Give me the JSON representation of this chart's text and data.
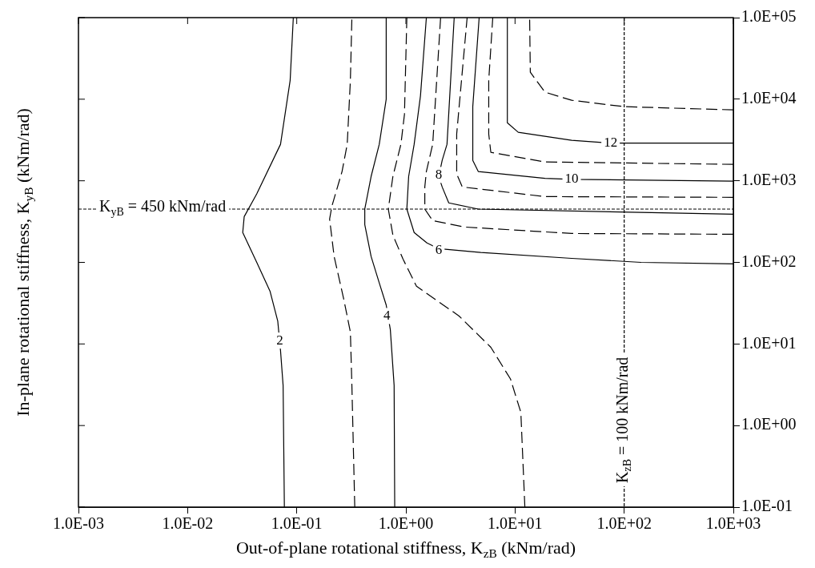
{
  "chart_data": {
    "type": "line",
    "xlabel": "Out-of-plane rotational stiffness, K$_{zB}$ (kNm/rad)",
    "ylabel": "In-plane rotational stiffness, K$_{yB}$ (kNm/rad)",
    "log": "xy",
    "grid": false,
    "legend": false,
    "marker": "none",
    "tick_labels": "xy",
    "xlim": [
      0.001,
      1000
    ],
    "ylim": [
      0.1,
      100000
    ],
    "xticks": [
      {
        "value": 0.001,
        "label": "1.0E-03"
      },
      {
        "value": 0.01,
        "label": "1.0E-02"
      },
      {
        "value": 0.1,
        "label": "1.0E-01"
      },
      {
        "value": 1,
        "label": "1.0E+00"
      },
      {
        "value": 10,
        "label": "1.0E+01"
      },
      {
        "value": 100,
        "label": "1.0E+02"
      },
      {
        "value": 1000,
        "label": "1.0E+03"
      }
    ],
    "yticks": [
      {
        "value": 0.1,
        "label": "1.0E-01"
      },
      {
        "value": 1,
        "label": "1.0E+00"
      },
      {
        "value": 10,
        "label": "1.0E+01"
      },
      {
        "value": 100,
        "label": "1.0E+02"
      },
      {
        "value": 1000,
        "label": "1.0E+03"
      },
      {
        "value": 10000,
        "label": "1.0E+04"
      },
      {
        "value": 100000,
        "label": "1.0E+05"
      }
    ],
    "series": [
      {
        "color": "#000000",
        "line_style": "solid",
        "x": [
          0.077,
          0.075,
          0.071,
          0.067,
          0.057,
          0.043,
          0.032,
          0.033,
          0.043,
          0.071,
          0.087,
          0.093
        ],
        "values": [
          0.1,
          3.1,
          8.3,
          19,
          44,
          100,
          232,
          364,
          690,
          2800,
          17000,
          100000
        ]
      },
      {
        "color": "#000000",
        "line_style": "dashed",
        "x": [
          0.34,
          0.32,
          0.31,
          0.27,
          0.22,
          0.2,
          0.21,
          0.26,
          0.29,
          0.31,
          0.32
        ],
        "values": [
          0.1,
          3.1,
          14,
          35,
          118,
          340,
          490,
          1300,
          2800,
          17000,
          100000
        ]
      },
      {
        "color": "#000000",
        "line_style": "solid",
        "x": [
          0.79,
          0.78,
          0.72,
          0.66,
          0.57,
          0.48,
          0.42,
          0.42,
          0.48,
          0.57,
          0.66,
          0.66
        ],
        "values": [
          0.1,
          3.1,
          15,
          30,
          56,
          118,
          290,
          450,
          1130,
          2800,
          10000,
          100000
        ]
      },
      {
        "color": "#000000",
        "line_style": "dashed",
        "x": [
          12.3,
          11.3,
          9.1,
          6,
          3.07,
          1.25,
          0.94,
          0.76,
          0.69,
          0.76,
          0.9,
          0.97,
          1.02
        ],
        "values": [
          0.1,
          1.45,
          3.7,
          9.1,
          22,
          51,
          110,
          216,
          450,
          1130,
          2800,
          6500,
          100000
        ]
      },
      {
        "color": "#000000",
        "line_style": "solid",
        "x": [
          1000,
          143,
          33,
          4.85,
          2,
          1.56,
          1.19,
          1.02,
          1.06,
          1.19,
          1.36,
          1.54
        ],
        "values": [
          96,
          100,
          112,
          132,
          147,
          173,
          232,
          450,
          1130,
          2800,
          11000,
          100000
        ]
      },
      {
        "color": "#000000",
        "line_style": "dashed",
        "x": [
          1000,
          33,
          3.46,
          1.76,
          1.49,
          1.49,
          1.54,
          1.76,
          2.08
        ],
        "values": [
          221,
          226,
          271,
          325,
          450,
          840,
          1300,
          2800,
          100000
        ]
      },
      {
        "color": "#000000",
        "line_style": "solid",
        "x": [
          1000,
          143,
          4.6,
          2.47,
          2.15,
          2,
          2.15,
          2.38,
          2.77
        ],
        "values": [
          390,
          410,
          450,
          536,
          840,
          1130,
          1780,
          2800,
          100000
        ]
      },
      {
        "color": "#000000",
        "line_style": "dashed",
        "x": [
          1000,
          18.8,
          3.29,
          2.92,
          2.92,
          3.64
        ],
        "values": [
          627,
          640,
          840,
          1210,
          3750,
          100000
        ]
      },
      {
        "color": "#000000",
        "line_style": "solid",
        "x": [
          1000,
          33,
          18.8,
          4.6,
          4.1,
          4.1,
          4.69
        ],
        "values": [
          990,
          1040,
          1070,
          1300,
          1780,
          8100,
          100000
        ]
      },
      {
        "color": "#000000",
        "line_style": "dashed",
        "x": [
          1000,
          18.8,
          6,
          5.74,
          5.74,
          6.25
        ],
        "values": [
          1590,
          1700,
          2230,
          3750,
          17000,
          100000
        ]
      },
      {
        "color": "#000000",
        "line_style": "solid",
        "x": [
          1000,
          75,
          33,
          10.7,
          8.5,
          8.5
        ],
        "values": [
          2900,
          2900,
          3130,
          3930,
          5150,
          100000
        ]
      },
      {
        "color": "#000000",
        "line_style": "dashed",
        "x": [
          1000,
          100,
          33,
          18.8,
          13.8,
          13.6
        ],
        "values": [
          7400,
          8100,
          9700,
          12200,
          21400,
          100000
        ]
      }
    ],
    "ref_lines": [
      {
        "axis": "y",
        "value": 450,
        "label": "K$_{yB}$ = 450 kNm/rad",
        "line_style": "dashed",
        "color": "#000000"
      },
      {
        "axis": "x",
        "value": 100,
        "label": "K$_{zB}$ = 100 kNm/rad",
        "line_style": "dashed",
        "color": "#000000"
      }
    ],
    "annotations": [
      {
        "text": "2",
        "x": 0.07,
        "y": 11
      },
      {
        "text": "4",
        "x": 0.67,
        "y": 22
      },
      {
        "text": "6",
        "x": 2,
        "y": 140
      },
      {
        "text": "8",
        "x": 2,
        "y": 1180
      },
      {
        "text": "10",
        "x": 33,
        "y": 1040
      },
      {
        "text": "12",
        "x": 75,
        "y": 2900
      }
    ]
  }
}
